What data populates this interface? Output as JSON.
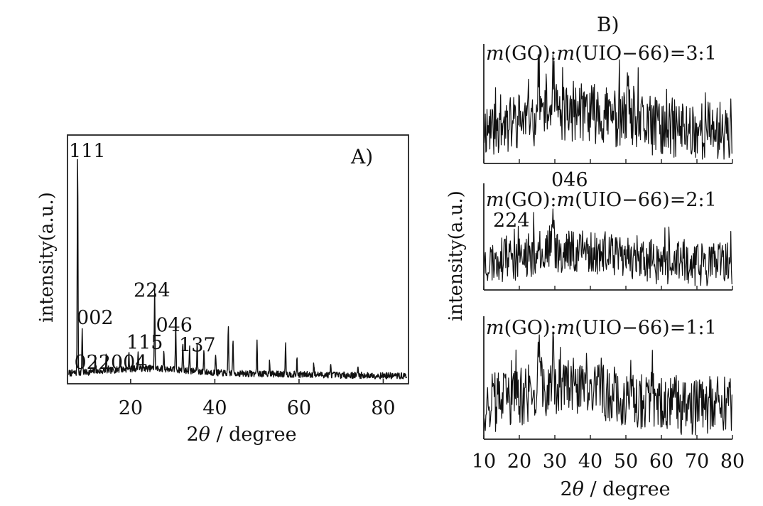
{
  "chart_data": [
    {
      "panel_label": "A)",
      "type": "line",
      "xlabel_pre": "2",
      "xlabel_theta": "θ",
      "xlabel_post": " / degree",
      "ylabel": "intensity(a.u.)",
      "xlim": [
        5,
        86
      ],
      "ylim": [
        0,
        100
      ],
      "xticks": [
        "20",
        "40",
        "60",
        "80"
      ],
      "xtick_values": [
        20,
        40,
        60,
        80
      ],
      "peaks": [
        {
          "x": 7.4,
          "y": 89
        },
        {
          "x": 8.5,
          "y": 18
        },
        {
          "x": 11.6,
          "y": 6
        },
        {
          "x": 14.2,
          "y": 6
        },
        {
          "x": 17.5,
          "y": 5
        },
        {
          "x": 19.6,
          "y": 6
        },
        {
          "x": 21.8,
          "y": 7
        },
        {
          "x": 25.7,
          "y": 32
        },
        {
          "x": 27.9,
          "y": 7
        },
        {
          "x": 30.7,
          "y": 18
        },
        {
          "x": 32.4,
          "y": 12
        },
        {
          "x": 34.0,
          "y": 9
        },
        {
          "x": 35.8,
          "y": 11
        },
        {
          "x": 37.4,
          "y": 9
        },
        {
          "x": 40.2,
          "y": 8
        },
        {
          "x": 43.2,
          "y": 18
        },
        {
          "x": 44.3,
          "y": 14
        },
        {
          "x": 50.0,
          "y": 13
        },
        {
          "x": 53.0,
          "y": 6
        },
        {
          "x": 56.8,
          "y": 13
        },
        {
          "x": 59.5,
          "y": 6
        },
        {
          "x": 63.5,
          "y": 5
        },
        {
          "x": 67.5,
          "y": 4
        },
        {
          "x": 74.0,
          "y": 3
        }
      ],
      "annotations": [
        {
          "text": "111",
          "x": 8.0,
          "y": 91
        },
        {
          "text": "002",
          "x": 7.2,
          "y": 24
        },
        {
          "text": "115",
          "x": 19.0,
          "y": 14
        },
        {
          "text": "224",
          "x": 20.7,
          "y": 35
        },
        {
          "text": "046",
          "x": 26.0,
          "y": 21
        },
        {
          "text": "137",
          "x": 31.5,
          "y": 13
        },
        {
          "text": "022004",
          "x": 6.6,
          "y": 6
        }
      ]
    },
    {
      "panel_label": "B)",
      "type": "line",
      "xlabel_pre": "2",
      "xlabel_theta": "θ",
      "xlabel_post": " / degree",
      "ylabel": "intensity(a.u.)",
      "xlim": [
        10,
        80
      ],
      "xticks": [
        "10",
        "20",
        "30",
        "40",
        "50",
        "60",
        "70",
        "80"
      ],
      "xtick_values": [
        10,
        20,
        30,
        40,
        50,
        60,
        70,
        80
      ],
      "series": [
        {
          "name": "m(GO):m(UIO-66)=3:1",
          "name_parts": [
            "m",
            "(GO):",
            "m",
            "(UIO−66)=3:1"
          ],
          "peaks": [
            {
              "x": 25.5,
              "y": 90
            },
            {
              "x": 29.5,
              "y": 85
            },
            {
              "x": 50.5,
              "y": 70
            }
          ],
          "annotations": []
        },
        {
          "name": "m(GO):m(UIO-66)=2:1",
          "name_parts": [
            "m",
            "(GO):",
            "m",
            "(UIO−66)=2:1"
          ],
          "peaks": [
            {
              "x": 25.5,
              "y": 75
            },
            {
              "x": 29.5,
              "y": 95
            },
            {
              "x": 50.0,
              "y": 60
            }
          ],
          "annotations": [
            {
              "text": "046",
              "x": 30.0,
              "y": 118
            },
            {
              "text": "224",
              "x": 23.0,
              "y": 68
            }
          ]
        },
        {
          "name": "m(GO):m(UIO-66)=1:1",
          "name_parts": [
            "m",
            "(GO):",
            "m",
            "(UIO−66)=1:1"
          ],
          "peaks": [
            {
              "x": 25.5,
              "y": 95
            },
            {
              "x": 29.5,
              "y": 80
            },
            {
              "x": 50.5,
              "y": 60
            }
          ],
          "annotations": []
        }
      ]
    }
  ]
}
